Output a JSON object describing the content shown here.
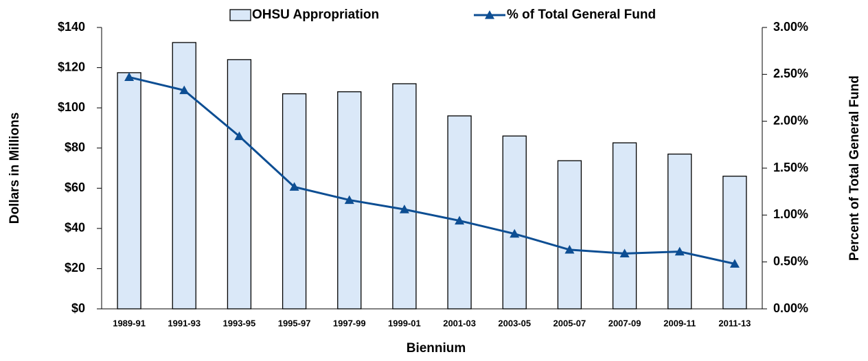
{
  "chart_data": {
    "type": "bar",
    "x_label": "Biennium",
    "y_label": "Dollars in Millions",
    "y2_label": "Percent of Total General Fund",
    "categories": [
      "1989-91",
      "1991-93",
      "1993-95",
      "1995-97",
      "1997-99",
      "1999-01",
      "2001-03",
      "2003-05",
      "2005-07",
      "2007-09",
      "2009-11",
      "2011-13"
    ],
    "series": [
      {
        "name": "OHSU Appropriation",
        "type": "bar",
        "color": "#dae8f8",
        "values": [
          117.5,
          132.5,
          124,
          107,
          108,
          112,
          96,
          86,
          73.7,
          82.6,
          77,
          66
        ]
      },
      {
        "name": "% of Total General Fund",
        "type": "line",
        "axis": "y2",
        "color": "#0d4e93",
        "values": [
          2.47,
          2.33,
          1.84,
          1.3,
          1.16,
          1.06,
          0.94,
          0.8,
          0.63,
          0.59,
          0.61,
          0.48
        ]
      }
    ],
    "ylim": [
      0,
      140
    ],
    "yticks": [
      {
        "value": 0,
        "label": "$0"
      },
      {
        "value": 20,
        "label": "$20"
      },
      {
        "value": 40,
        "label": "$40"
      },
      {
        "value": 60,
        "label": "$60"
      },
      {
        "value": 80,
        "label": "$80"
      },
      {
        "value": 100,
        "label": "$100"
      },
      {
        "value": 120,
        "label": "$120"
      },
      {
        "value": 140,
        "label": "$140"
      }
    ],
    "y2lim": [
      0,
      3
    ],
    "y2ticks": [
      {
        "value": 0,
        "label": "0.00%"
      },
      {
        "value": 0.5,
        "label": "0.50%"
      },
      {
        "value": 1,
        "label": "1.00%"
      },
      {
        "value": 1.5,
        "label": "1.50%"
      },
      {
        "value": 2,
        "label": "2.00%"
      },
      {
        "value": 2.5,
        "label": "2.50%"
      },
      {
        "value": 3,
        "label": "3.00%"
      }
    ],
    "grid": false,
    "legend": "top"
  }
}
